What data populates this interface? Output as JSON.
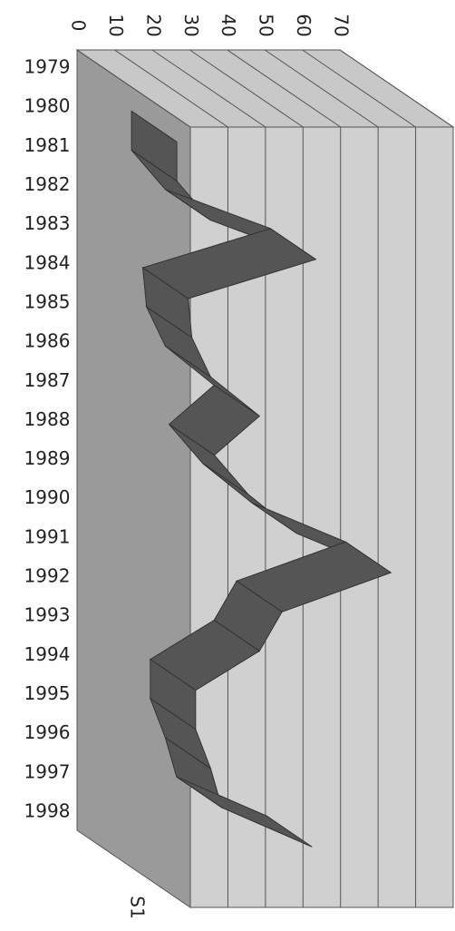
{
  "chart_data": {
    "type": "line3d",
    "categories": [
      "1979",
      "1980",
      "1981",
      "1982",
      "1983",
      "1984",
      "1985",
      "1986",
      "1987",
      "1988",
      "1989",
      "1990",
      "1991",
      "1992",
      "1993",
      "1994",
      "1995",
      "1996",
      "1997",
      "1998"
    ],
    "series": [
      {
        "name": "S1",
        "color": "#555555",
        "values": [
          null,
          13,
          13,
          22,
          50,
          16,
          17,
          22,
          35,
          23,
          32,
          45,
          70,
          41,
          35,
          18,
          18,
          22,
          25,
          49
        ]
      }
    ],
    "ylim": [
      0,
      70
    ],
    "yticks": [
      0,
      10,
      20,
      30,
      40,
      50,
      60,
      70
    ],
    "grid": true
  }
}
